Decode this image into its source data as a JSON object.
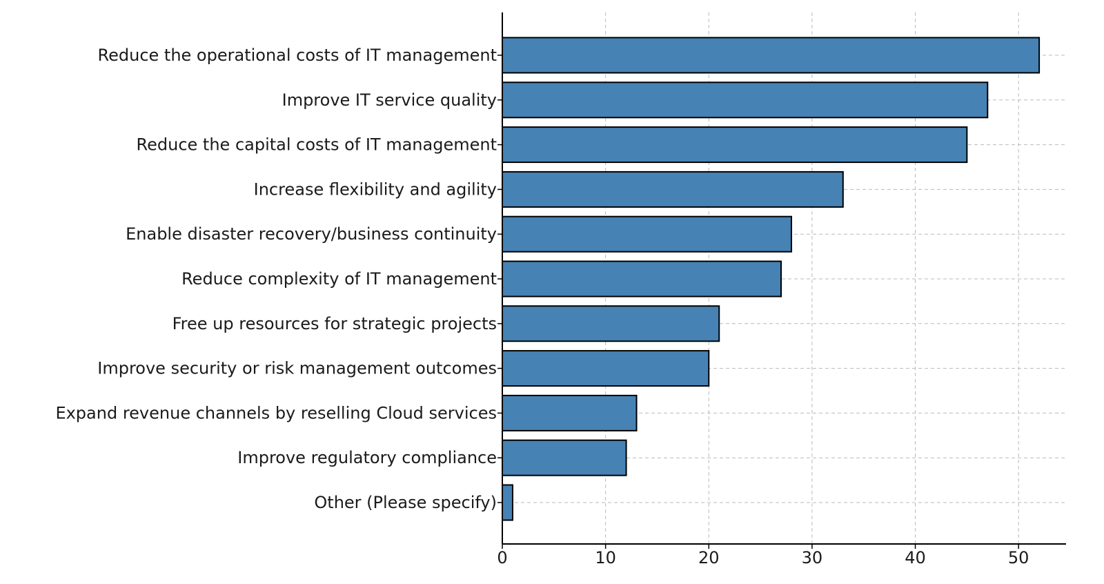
{
  "chart_data": {
    "type": "bar",
    "orientation": "horizontal",
    "title": "",
    "xlabel": "",
    "ylabel": "",
    "categories": [
      "Reduce the operational costs of IT management",
      "Improve IT service quality",
      "Reduce the capital costs of IT management",
      "Increase flexibility and agility",
      "Enable disaster recovery/business continuity",
      "Reduce complexity of IT management",
      "Free up resources for strategic projects",
      "Improve security or risk management outcomes",
      "Expand revenue channels by reselling Cloud services",
      "Improve regulatory compliance",
      "Other (Please specify)"
    ],
    "values": [
      52,
      47,
      45,
      33,
      28,
      27,
      21,
      20,
      13,
      12,
      1
    ],
    "xlim": [
      0,
      54.6
    ],
    "xticks": [
      "0",
      "10",
      "20",
      "30",
      "40",
      "50"
    ],
    "grid": true,
    "legend": "none",
    "bar_color": "#4682b4",
    "bar_edge_color": "#000000",
    "grid_color": "#b9b9b9"
  }
}
